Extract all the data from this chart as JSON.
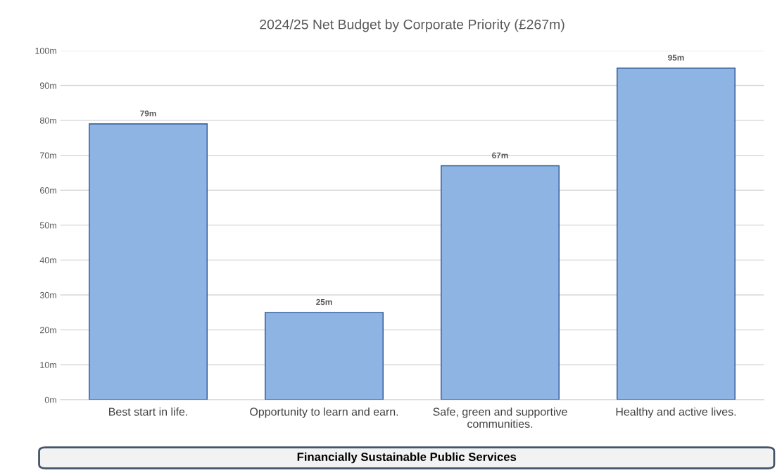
{
  "chart_data": {
    "type": "bar",
    "title": "2024/25 Net Budget by Corporate Priority (£267m)",
    "categories": [
      "Best start in life.",
      "Opportunity to learn and earn.",
      "Safe, green and supportive\ncommunities.",
      "Healthy and active lives."
    ],
    "values": [
      79,
      25,
      67,
      95
    ],
    "value_labels": [
      "79m",
      "25m",
      "67m",
      "95m"
    ],
    "color": "#8eb4e3",
    "ylim": [
      0,
      100
    ],
    "yticks": [
      {
        "value": 0,
        "label": "0m"
      },
      {
        "value": 10,
        "label": "10m"
      },
      {
        "value": 20,
        "label": "20m"
      },
      {
        "value": 30,
        "label": "30m"
      },
      {
        "value": 40,
        "label": "40m"
      },
      {
        "value": 50,
        "label": "50m"
      },
      {
        "value": 60,
        "label": "60m"
      },
      {
        "value": 70,
        "label": "70m"
      },
      {
        "value": 80,
        "label": "80m"
      },
      {
        "value": 90,
        "label": "90m"
      },
      {
        "value": 100,
        "label": "100m"
      }
    ],
    "grid": "y",
    "annotations": [
      "Financially Sustainable Public Services"
    ]
  }
}
